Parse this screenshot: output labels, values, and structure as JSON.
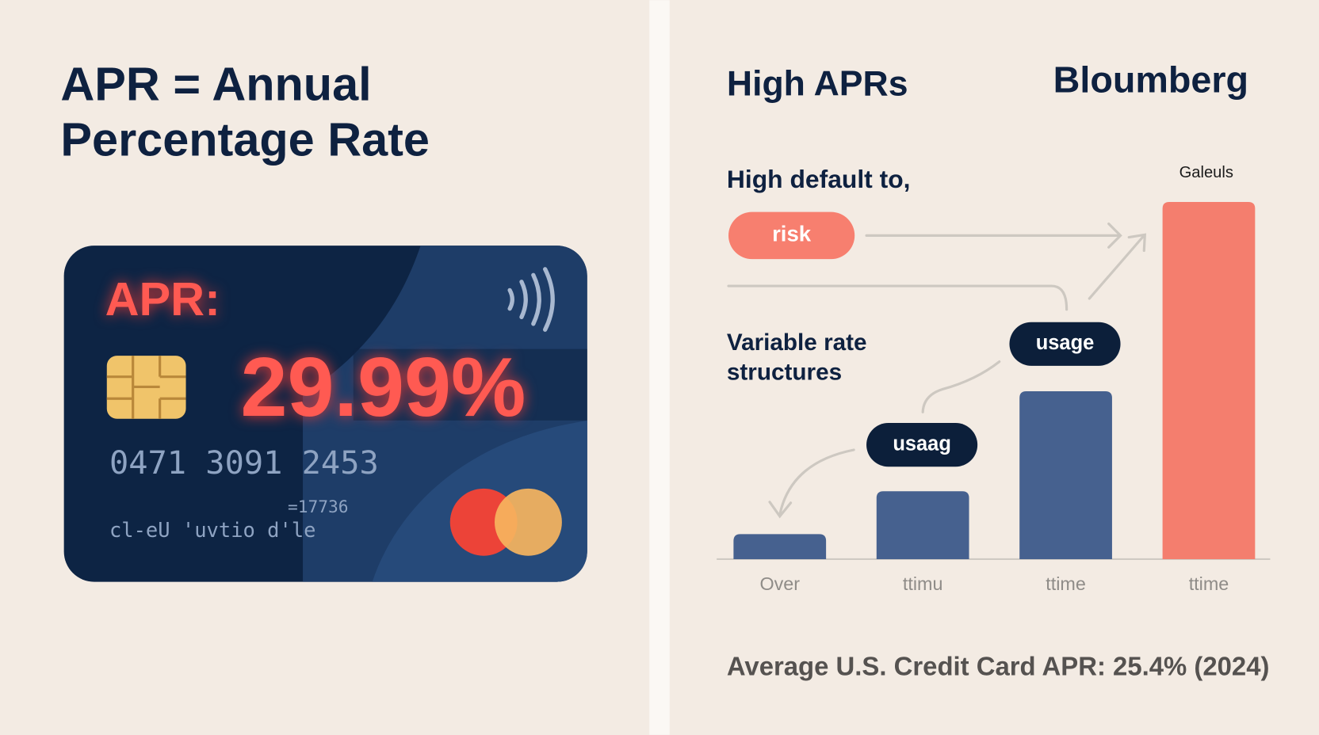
{
  "left": {
    "title_lines": [
      "APR = Annual",
      "Percentage Rate"
    ],
    "card": {
      "label": "APR:",
      "rate": "29.99%",
      "number": "0471 3091 2453",
      "code": "=17736",
      "holder": "cl-eU 'uvtio d'le"
    }
  },
  "right": {
    "heading": "High APRs",
    "brand": "Bloumberg",
    "default_label": "High default to,",
    "risk_pill": "risk",
    "variable_lines": [
      "Variable rate",
      "structures"
    ],
    "usage_pill": "usage",
    "usaag_pill": "usaag",
    "bar_label": "Galeuls"
  },
  "chart_data": {
    "type": "bar",
    "categories": [
      "Over",
      "ttimu",
      "ttime",
      "ttime"
    ],
    "values": [
      7,
      19,
      47,
      100
    ],
    "colors": [
      "#46618f",
      "#46618f",
      "#46618f",
      "#f47e6e"
    ]
  },
  "footer": "Average U.S. Credit Card APR: 25.4% (2024)"
}
